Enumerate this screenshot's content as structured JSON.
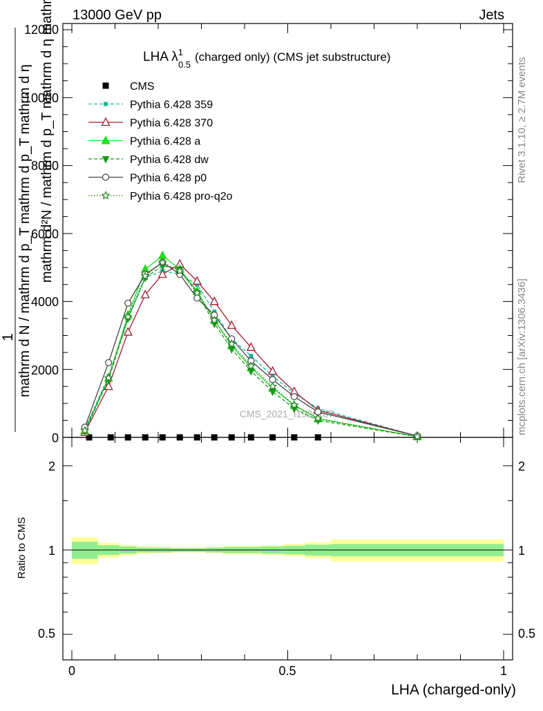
{
  "header": {
    "left": "13000 GeV pp",
    "right": "Jets"
  },
  "plot_title": "LHA λ",
  "plot_title_sup": "1",
  "plot_title_sub": "0.5",
  "plot_title_rest": "(charged only) (CMS jet substructure)",
  "watermark": "CMS_2021_I1920187",
  "side_text_top": "Rivet 3.1.10, ≥ 2.7M events",
  "side_text_bottom": "mcplots.cern.ch [arXiv:1306.3436]",
  "y_label_parts": {
    "one": "1",
    "denominator": "mathrm d N / mathrm d p_T mathrm d p_T mathrm d η",
    "numerator": "mathrm d²N / mathrm d p_T mathrm d η mathrm d lambda"
  },
  "ratio_ylabel": "Ratio to CMS",
  "xlabel": "LHA (charged-only)",
  "colors": {
    "CMS": "#000000",
    "p359": "#17b8a0",
    "p370": "#9b1c2a",
    "pa": "#22dd22",
    "pdw": "#1a9a1a",
    "pp0": "#444444",
    "pq2o": "#1f7a1f",
    "band_inner": "#90ee90",
    "band_outer": "#ffff99"
  },
  "chart_data": {
    "type": "line",
    "xlim": [
      -0.02,
      1.02
    ],
    "ylim_main": [
      0,
      12000
    ],
    "ylim_ratio": [
      0.35,
      2.3
    ],
    "main_y_ticks": [
      "0",
      "2000",
      "4000",
      "6000",
      "8000",
      "10000",
      "12000"
    ],
    "ratio_y_ticks": [
      "0.5",
      "1",
      "2"
    ],
    "x_ticks": [
      "0",
      "0.5",
      "1"
    ],
    "series": [
      {
        "name": "CMS",
        "marker": "square",
        "x": [
          0.04,
          0.09,
          0.13,
          0.17,
          0.21,
          0.25,
          0.29,
          0.33,
          0.37,
          0.415,
          0.465,
          0.515,
          0.57
        ],
        "y": [
          0,
          0,
          0,
          0,
          0,
          0,
          0,
          0,
          0,
          0,
          0,
          0,
          0
        ]
      },
      {
        "name": "Pythia 6.428 359",
        "marker": "small-square",
        "x": [
          0.03,
          0.085,
          0.13,
          0.17,
          0.21,
          0.25,
          0.29,
          0.33,
          0.37,
          0.415,
          0.465,
          0.515,
          0.57,
          0.8
        ],
        "y": [
          250,
          1800,
          3500,
          4700,
          4900,
          4800,
          4500,
          3700,
          2900,
          2400,
          1800,
          1300,
          850,
          40
        ]
      },
      {
        "name": "Pythia 6.428 370",
        "marker": "open-triangle",
        "x": [
          0.03,
          0.085,
          0.13,
          0.17,
          0.21,
          0.25,
          0.29,
          0.33,
          0.37,
          0.415,
          0.465,
          0.515,
          0.57,
          0.8
        ],
        "y": [
          150,
          1500,
          3100,
          4200,
          4800,
          5100,
          4600,
          4000,
          3300,
          2650,
          1950,
          1350,
          800,
          40
        ]
      },
      {
        "name": "Pythia 6.428 a",
        "marker": "triangle",
        "x": [
          0.03,
          0.085,
          0.13,
          0.17,
          0.21,
          0.25,
          0.29,
          0.33,
          0.37,
          0.415,
          0.465,
          0.515,
          0.57,
          0.8
        ],
        "y": [
          200,
          1750,
          3600,
          4950,
          5350,
          4950,
          4300,
          3450,
          2700,
          2050,
          1450,
          950,
          550,
          20
        ]
      },
      {
        "name": "Pythia 6.428 dw",
        "marker": "triangle-down",
        "x": [
          0.03,
          0.085,
          0.13,
          0.17,
          0.21,
          0.25,
          0.29,
          0.33,
          0.37,
          0.415,
          0.465,
          0.515,
          0.57,
          0.8
        ],
        "y": [
          180,
          1700,
          3500,
          4700,
          5050,
          4950,
          4250,
          3350,
          2600,
          1950,
          1350,
          850,
          500,
          20
        ]
      },
      {
        "name": "Pythia 6.428 p0",
        "marker": "open-circle",
        "x": [
          0.03,
          0.085,
          0.13,
          0.17,
          0.21,
          0.25,
          0.29,
          0.33,
          0.37,
          0.415,
          0.465,
          0.515,
          0.57,
          0.8
        ],
        "y": [
          300,
          2200,
          3950,
          4800,
          5150,
          4800,
          4100,
          3600,
          2900,
          2250,
          1700,
          1200,
          750,
          40
        ]
      },
      {
        "name": "Pythia 6.428 pro-q2o",
        "marker": "open-star",
        "x": [
          0.03,
          0.085,
          0.13,
          0.17,
          0.21,
          0.25,
          0.29,
          0.33,
          0.37,
          0.415,
          0.465,
          0.515,
          0.57,
          0.8
        ],
        "y": [
          200,
          1750,
          3550,
          4750,
          5150,
          4900,
          4250,
          3450,
          2750,
          2100,
          1500,
          950,
          560,
          20
        ]
      }
    ],
    "ratio_band": {
      "x_edges": [
        0,
        0.06,
        0.11,
        0.15,
        0.19,
        0.23,
        0.27,
        0.31,
        0.35,
        0.39,
        0.44,
        0.49,
        0.54,
        0.6,
        1.0
      ],
      "inner": [
        0.07,
        0.04,
        0.03,
        0.02,
        0.02,
        0.015,
        0.015,
        0.02,
        0.025,
        0.025,
        0.03,
        0.035,
        0.045,
        0.05
      ],
      "outer": [
        0.11,
        0.06,
        0.045,
        0.03,
        0.025,
        0.02,
        0.02,
        0.025,
        0.035,
        0.035,
        0.04,
        0.05,
        0.065,
        0.09
      ]
    }
  }
}
